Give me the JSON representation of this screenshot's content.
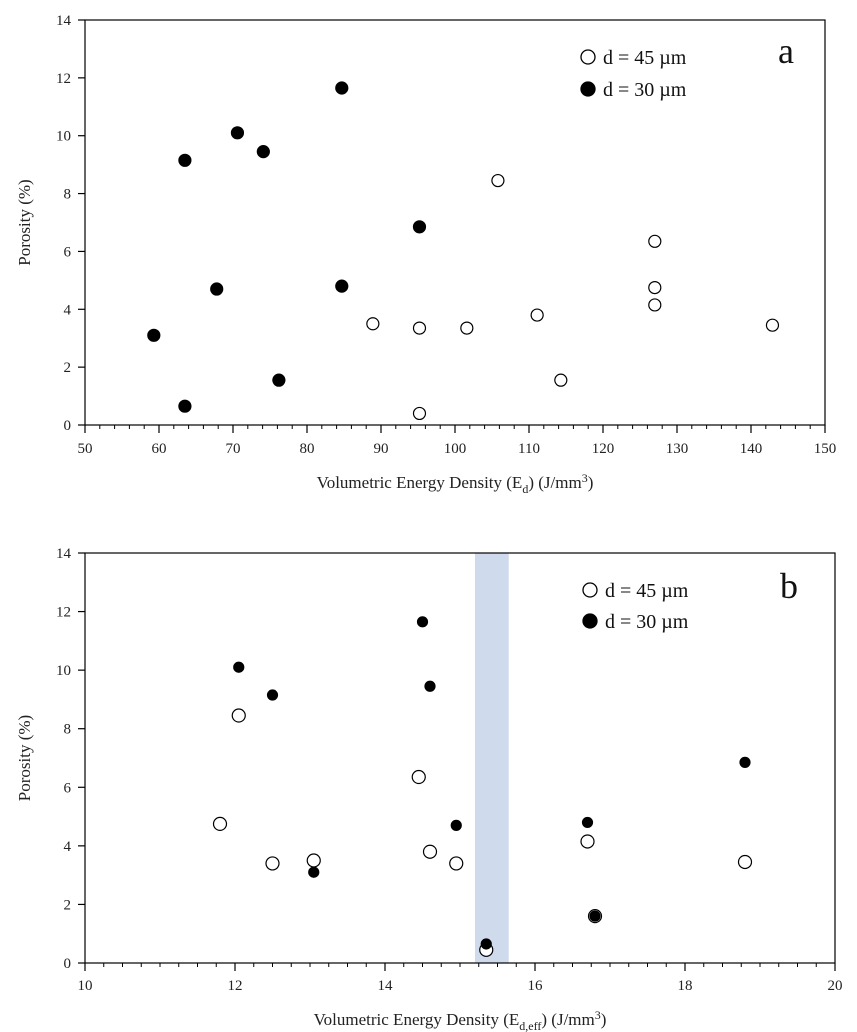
{
  "chart_data": [
    {
      "type": "scatter",
      "panel_label": "a",
      "xlabel": {
        "main": "Volumetric Energy Density (E",
        "sub": "d",
        "tail": ") (J/mm",
        "sup": "3",
        "end": ")"
      },
      "ylabel": "Porosity (%)",
      "xlim": [
        50,
        150
      ],
      "ylim": [
        0,
        14
      ],
      "xticks": [
        50,
        60,
        70,
        80,
        90,
        100,
        110,
        120,
        130,
        140,
        150
      ],
      "yticks": [
        0,
        2,
        4,
        6,
        8,
        10,
        12,
        14
      ],
      "x_minor_step": 2,
      "legend_position": "top-right",
      "series": [
        {
          "name": "d = 45 µm",
          "marker": "open-circle",
          "points": [
            [
              88.9,
              3.5
            ],
            [
              95.2,
              3.35
            ],
            [
              101.6,
              3.35
            ],
            [
              105.8,
              8.45
            ],
            [
              111.1,
              3.8
            ],
            [
              114.3,
              1.55
            ],
            [
              127.0,
              6.35
            ],
            [
              127.0,
              4.75
            ],
            [
              127.0,
              4.15
            ],
            [
              142.9,
              3.45
            ],
            [
              95.2,
              0.4
            ]
          ]
        },
        {
          "name": "d = 30 µm",
          "marker": "filled-circle",
          "points": [
            [
              59.3,
              3.1
            ],
            [
              63.5,
              9.15
            ],
            [
              63.5,
              0.65
            ],
            [
              67.8,
              4.7
            ],
            [
              70.6,
              10.1
            ],
            [
              74.1,
              9.45
            ],
            [
              76.2,
              1.55
            ],
            [
              84.7,
              11.65
            ],
            [
              84.7,
              4.8
            ],
            [
              95.2,
              6.85
            ]
          ]
        }
      ]
    },
    {
      "type": "scatter",
      "panel_label": "b",
      "xlabel": {
        "main": "Volumetric Energy Density (E",
        "sub": "d,eff",
        "tail": ") (J/mm",
        "sup": "3",
        "end": ")"
      },
      "ylabel": "Porosity (%)",
      "xlim": [
        10,
        20
      ],
      "ylim": [
        0,
        14
      ],
      "xticks": [
        10,
        12,
        14,
        16,
        18,
        20
      ],
      "yticks": [
        0,
        2,
        4,
        6,
        8,
        10,
        12,
        14
      ],
      "x_minor_step": 0.25,
      "legend_position": "top-right",
      "highlight_band": {
        "x": [
          15.2,
          15.65
        ],
        "color": "#cfdbec"
      },
      "series": [
        {
          "name": "d = 45 µm",
          "marker": "open-circle",
          "points": [
            [
              11.8,
              4.75
            ],
            [
              12.05,
              8.45
            ],
            [
              12.5,
              3.4
            ],
            [
              13.05,
              3.5
            ],
            [
              14.45,
              6.35
            ],
            [
              14.6,
              3.8
            ],
            [
              14.95,
              3.4
            ],
            [
              15.35,
              0.45
            ],
            [
              16.7,
              4.15
            ],
            [
              16.8,
              1.6
            ],
            [
              18.8,
              3.45
            ]
          ]
        },
        {
          "name": "d = 30 µm",
          "marker": "filled-circle",
          "points": [
            [
              12.05,
              10.1
            ],
            [
              12.5,
              9.15
            ],
            [
              13.05,
              3.1
            ],
            [
              14.5,
              11.65
            ],
            [
              14.6,
              9.45
            ],
            [
              14.95,
              4.7
            ],
            [
              15.35,
              0.65
            ],
            [
              16.7,
              4.8
            ],
            [
              16.8,
              1.6
            ],
            [
              18.8,
              6.85
            ]
          ]
        }
      ]
    }
  ]
}
